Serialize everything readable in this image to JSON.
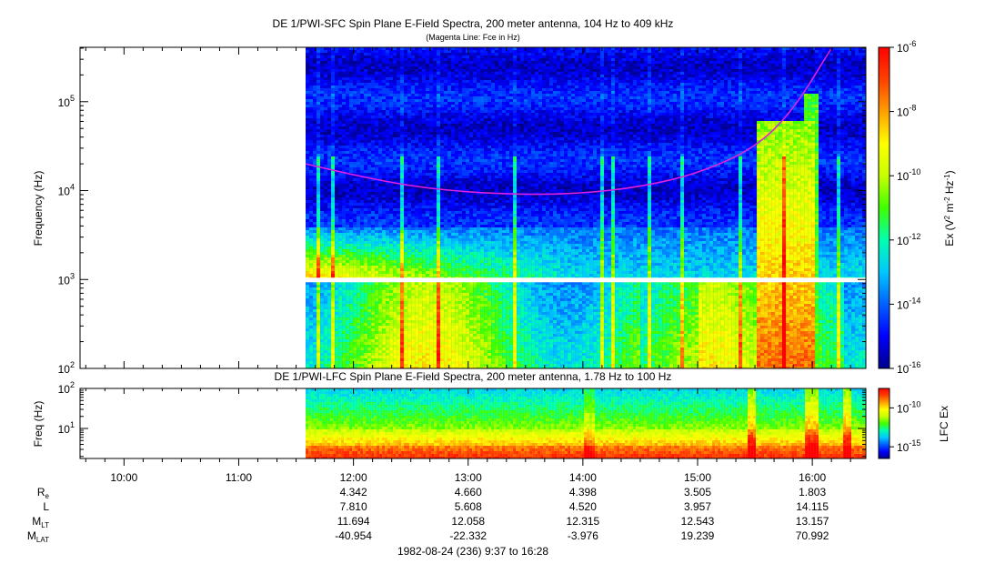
{
  "chart_data": [
    {
      "type": "heatmap",
      "title": "DE 1/PWI-SFC  Spin Plane E-Field Spectra, 200 meter antenna, 104 Hz to 409 kHz",
      "subtitle": "(Magenta Line: Fce in Hz)",
      "ylabel": "Frequency (Hz)",
      "yscale": "log",
      "ylim": [
        100,
        409000
      ],
      "y_ticks": [
        {
          "value": 100,
          "base": "10",
          "exp": "2"
        },
        {
          "value": 1000,
          "base": "10",
          "exp": "3"
        },
        {
          "value": 10000,
          "base": "10",
          "exp": "4"
        },
        {
          "value": 100000,
          "base": "10",
          "exp": "5"
        }
      ],
      "colorbar": {
        "label_parts": {
          "a": "Ex (V",
          "a_sup": "2",
          "b": " m",
          "b_sup": "-2",
          "c": " Hz",
          "c_sup": "-1",
          "d": ")"
        },
        "scale": "log",
        "range": [
          1e-16,
          1e-06
        ],
        "ticks": [
          {
            "value": 1e-06,
            "base": "10",
            "exp": "-6"
          },
          {
            "value": 1e-08,
            "base": "10",
            "exp": "-8"
          },
          {
            "value": 1e-10,
            "base": "10",
            "exp": "-10"
          },
          {
            "value": 1e-12,
            "base": "10",
            "exp": "-12"
          },
          {
            "value": 1e-14,
            "base": "10",
            "exp": "-14"
          },
          {
            "value": 1e-16,
            "base": "10",
            "exp": "-16"
          }
        ],
        "colors": [
          "#00008c",
          "#0000ff",
          "#0060ff",
          "#00c8ff",
          "#00ffb0",
          "#40ff00",
          "#c8ff00",
          "#ffff00",
          "#ffa000",
          "#ff4000",
          "#ff0000"
        ]
      },
      "data_start_time": "11:35",
      "fce_line": {
        "color": "#e020e0",
        "points": [
          [
            "11:35",
            20000
          ],
          [
            "12:00",
            15000
          ],
          [
            "12:30",
            11200
          ],
          [
            "13:00",
            9600
          ],
          [
            "13:30",
            9000
          ],
          [
            "14:00",
            9300
          ],
          [
            "14:30",
            11000
          ],
          [
            "15:00",
            15500
          ],
          [
            "15:30",
            30000
          ],
          [
            "15:50",
            80000
          ],
          [
            "16:10",
            400000
          ]
        ]
      },
      "data_gap_frequency": 1000
    },
    {
      "type": "heatmap",
      "title": "DE 1/PWI-LFC  Spin Plane E-Field Spectra, 200 meter antenna, 1.78 Hz to 100 Hz",
      "ylabel": "Freq (Hz)",
      "yscale": "log",
      "ylim": [
        1.78,
        100
      ],
      "y_ticks": [
        {
          "value": 10,
          "base": "10",
          "exp": "1"
        },
        {
          "value": 100,
          "base": "10",
          "exp": "2"
        }
      ],
      "colorbar": {
        "label": "LFC Ex",
        "scale": "log",
        "ticks": [
          {
            "value": 1e-10,
            "base": "10",
            "exp": "-10"
          },
          {
            "value": 1e-15,
            "base": "10",
            "exp": "-15"
          }
        ]
      },
      "data_start_time": "11:35"
    }
  ],
  "time_axis": {
    "start": "9:37",
    "end": "16:28",
    "ticks": [
      "10:00",
      "11:00",
      "12:00",
      "13:00",
      "14:00",
      "15:00",
      "16:00"
    ]
  },
  "ephemeris": {
    "rows": [
      {
        "label": "R",
        "sub": "e",
        "values": [
          "4.342",
          "4.660",
          "4.398",
          "3.505",
          "1.803"
        ]
      },
      {
        "label": "L",
        "sub": "",
        "values": [
          "7.810",
          "5.608",
          "4.520",
          "3.957",
          "14.115"
        ]
      },
      {
        "label": "M",
        "sub": "LT",
        "values": [
          "11.694",
          "12.058",
          "12.315",
          "12.543",
          "13.157"
        ]
      },
      {
        "label": "M",
        "sub": "LAT",
        "values": [
          "-40.954",
          "-22.332",
          "-3.976",
          "19.239",
          "70.992"
        ]
      }
    ]
  },
  "footer": "1982-08-24 (236) 9:37 to 16:28"
}
